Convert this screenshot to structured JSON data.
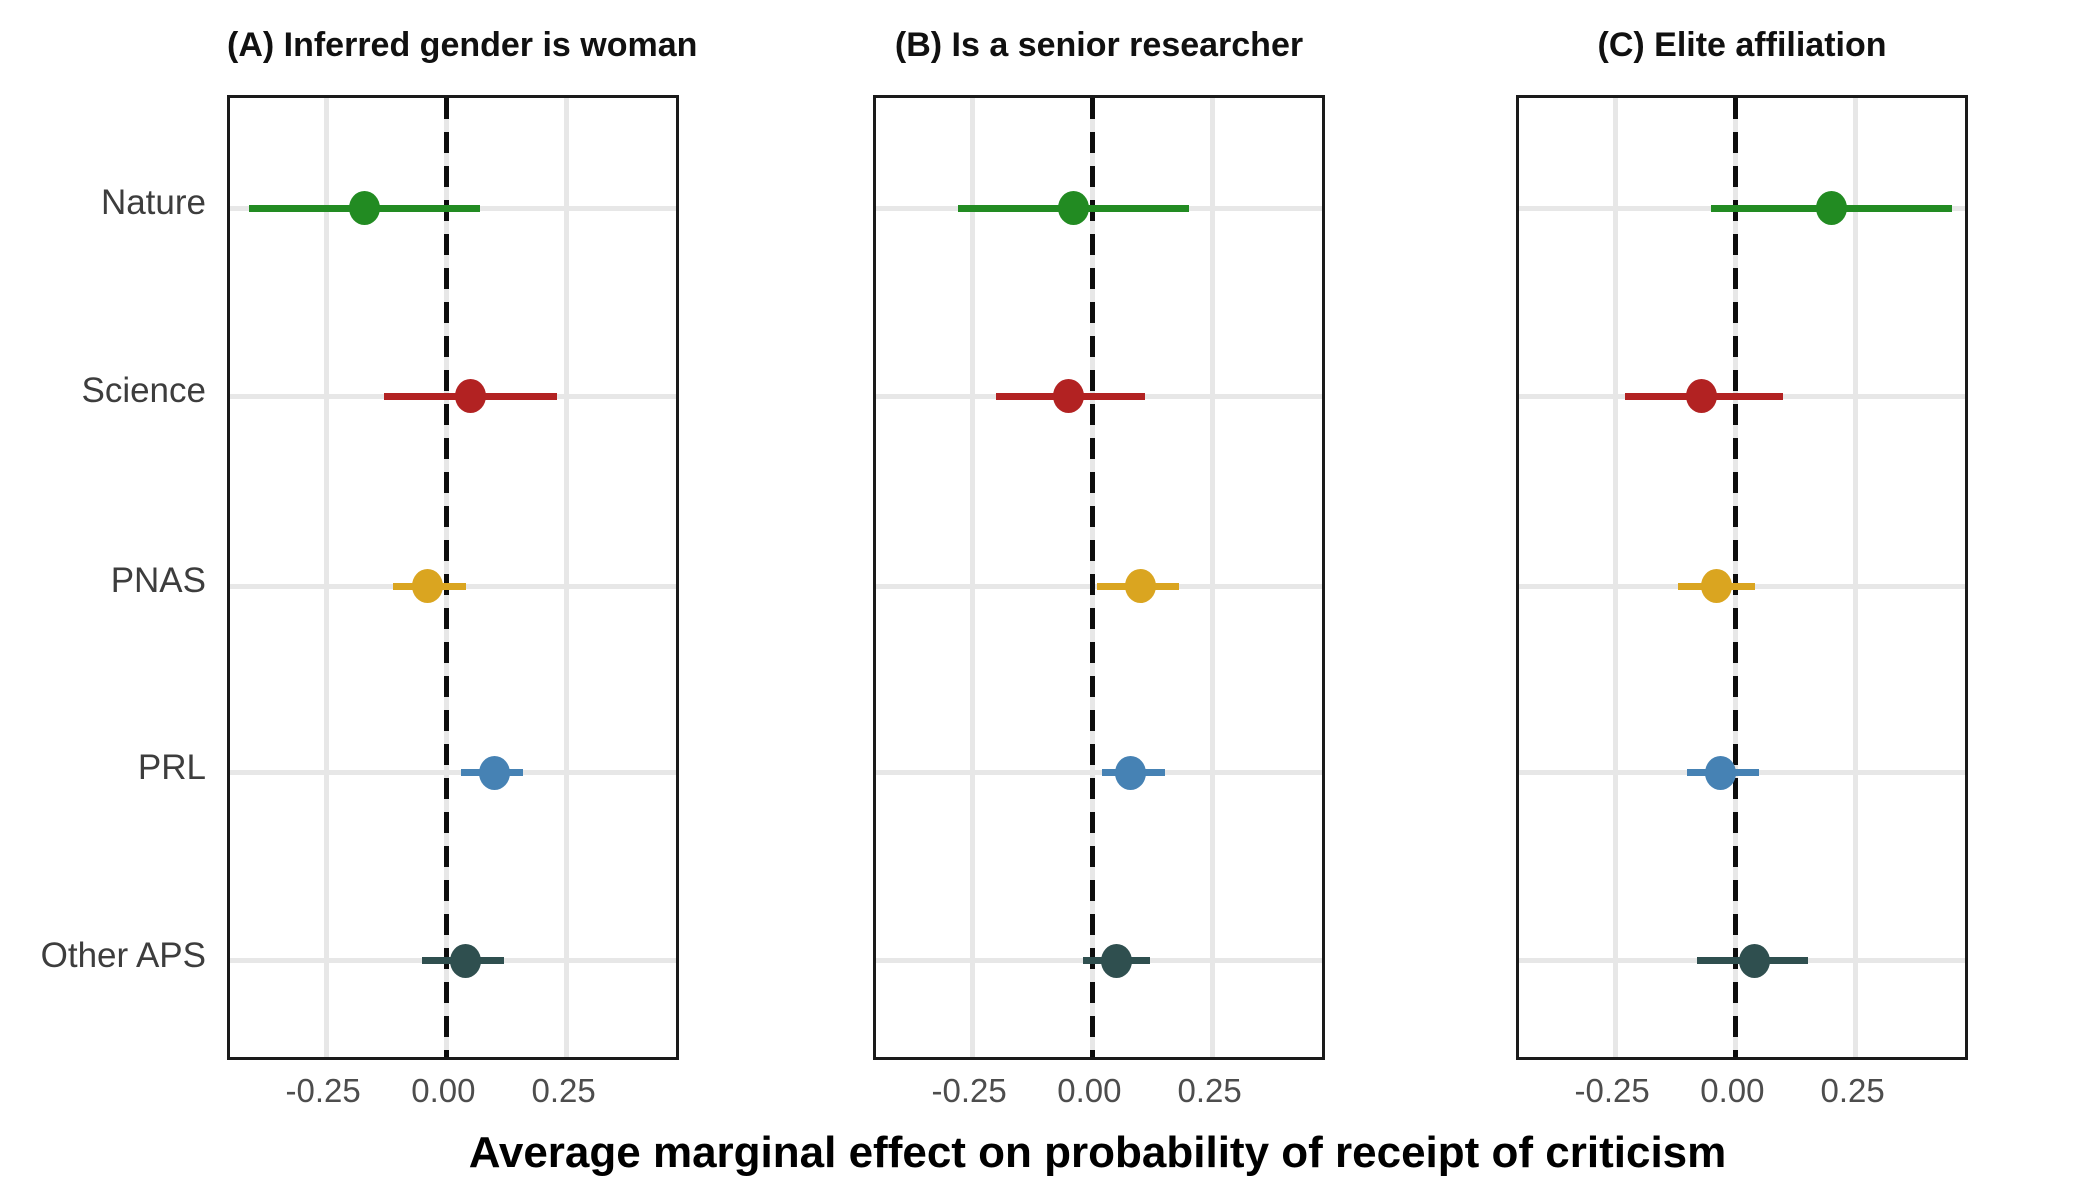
{
  "figure": {
    "xlabel": "Average marginal effect on probability of receipt of criticism",
    "x_tick_labels": [
      "-0.25",
      "0.00",
      "0.25"
    ],
    "x_tick_values": [
      -0.25,
      0,
      0.25
    ],
    "xlim": [
      -0.45,
      0.49
    ],
    "zero_reference_line": 0,
    "journals": [
      "Nature",
      "Science",
      "PNAS",
      "PRL",
      "Other APS"
    ],
    "colors": {
      "Nature": "#228B22",
      "Science": "#B22222",
      "PNAS": "#DAA520",
      "PRL": "#4682B4",
      "Other APS": "#2F4F4F",
      "gridline": "#e7e7e7",
      "panel_border": "#1a1a1a",
      "dashed_line": "#0d0d0d"
    }
  },
  "chart_data": [
    {
      "type": "scatter",
      "title": "(A) Inferred gender is woman",
      "xlabel": "Average marginal effect on probability of receipt of criticism",
      "x_ticks": [
        -0.25,
        0,
        0.25
      ],
      "xlim": [
        -0.45,
        0.49
      ],
      "points": [
        {
          "label": "Nature",
          "color": "#228B22",
          "estimate": -0.17,
          "ci_low": -0.41,
          "ci_high": 0.07
        },
        {
          "label": "Science",
          "color": "#B22222",
          "estimate": 0.05,
          "ci_low": -0.13,
          "ci_high": 0.23
        },
        {
          "label": "PNAS",
          "color": "#DAA520",
          "estimate": -0.04,
          "ci_low": -0.11,
          "ci_high": 0.04
        },
        {
          "label": "PRL",
          "color": "#4682B4",
          "estimate": 0.1,
          "ci_low": 0.03,
          "ci_high": 0.16
        },
        {
          "label": "Other APS",
          "color": "#2F4F4F",
          "estimate": 0.04,
          "ci_low": -0.05,
          "ci_high": 0.12
        }
      ]
    },
    {
      "type": "scatter",
      "title": "(B) Is a senior researcher",
      "xlabel": "Average marginal effect on probability of receipt of criticism",
      "x_ticks": [
        -0.25,
        0,
        0.25
      ],
      "xlim": [
        -0.45,
        0.49
      ],
      "points": [
        {
          "label": "Nature",
          "color": "#228B22",
          "estimate": -0.04,
          "ci_low": -0.28,
          "ci_high": 0.2
        },
        {
          "label": "Science",
          "color": "#B22222",
          "estimate": -0.05,
          "ci_low": -0.2,
          "ci_high": 0.11
        },
        {
          "label": "PNAS",
          "color": "#DAA520",
          "estimate": 0.1,
          "ci_low": 0.01,
          "ci_high": 0.18
        },
        {
          "label": "PRL",
          "color": "#4682B4",
          "estimate": 0.08,
          "ci_low": 0.02,
          "ci_high": 0.15
        },
        {
          "label": "Other APS",
          "color": "#2F4F4F",
          "estimate": 0.05,
          "ci_low": -0.02,
          "ci_high": 0.12
        }
      ]
    },
    {
      "type": "scatter",
      "title": "(C) Elite affiliation",
      "xlabel": "Average marginal effect on probability of receipt of criticism",
      "x_ticks": [
        -0.25,
        0,
        0.25
      ],
      "xlim": [
        -0.45,
        0.49
      ],
      "points": [
        {
          "label": "Nature",
          "color": "#228B22",
          "estimate": 0.2,
          "ci_low": -0.05,
          "ci_high": 0.45
        },
        {
          "label": "Science",
          "color": "#B22222",
          "estimate": -0.07,
          "ci_low": -0.23,
          "ci_high": 0.1
        },
        {
          "label": "PNAS",
          "color": "#DAA520",
          "estimate": -0.04,
          "ci_low": -0.12,
          "ci_high": 0.04
        },
        {
          "label": "PRL",
          "color": "#4682B4",
          "estimate": -0.03,
          "ci_low": -0.1,
          "ci_high": 0.05
        },
        {
          "label": "Other APS",
          "color": "#2F4F4F",
          "estimate": 0.04,
          "ci_low": -0.08,
          "ci_high": 0.15
        }
      ]
    }
  ]
}
